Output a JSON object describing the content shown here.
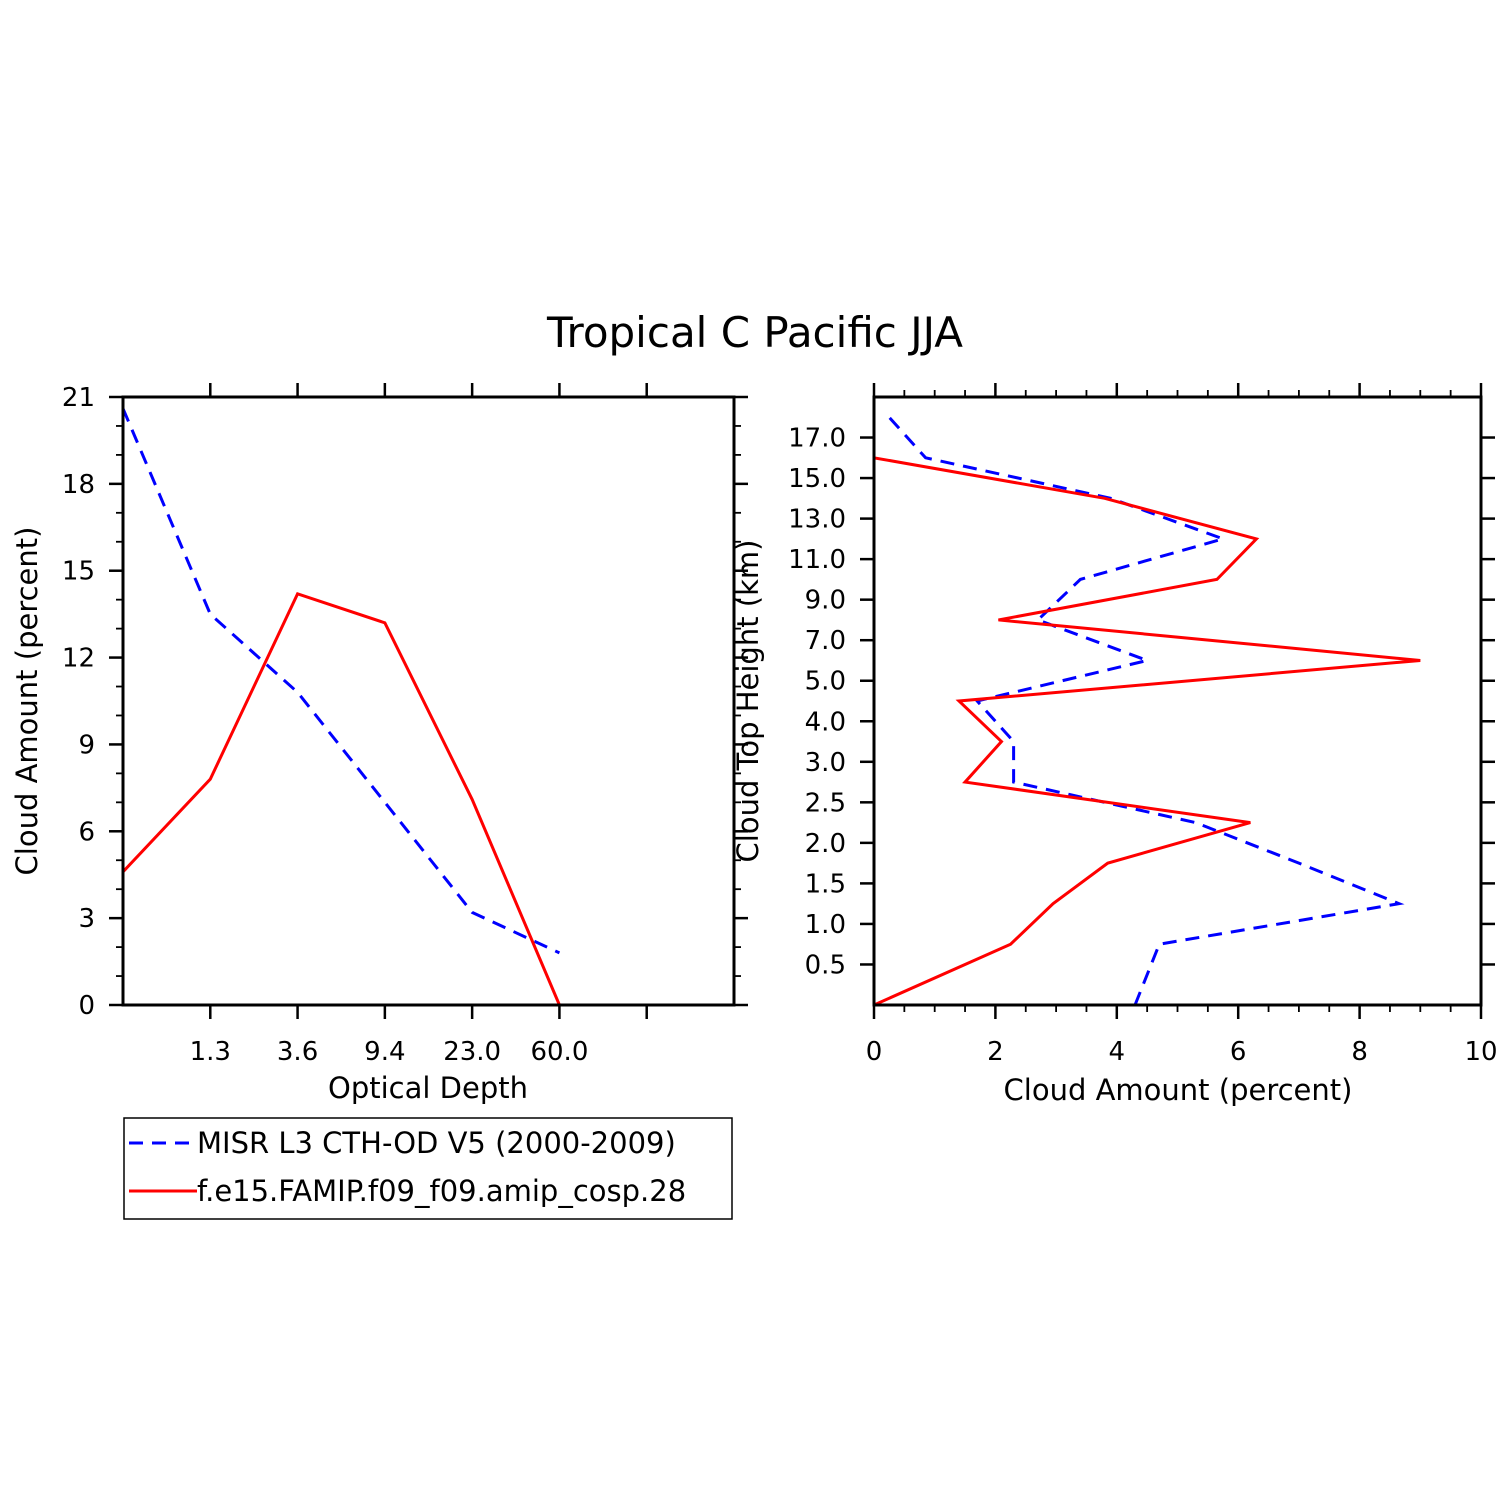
{
  "title": "Tropical C Pacific JJA",
  "colors": {
    "misr": "#0000ff",
    "model": "#ff0000"
  },
  "legend": {
    "items": [
      {
        "label": "MISR L3 CTH-OD V5 (2000-2009)",
        "color": "#0000ff",
        "dash": "dashed"
      },
      {
        "label": "f.e15.FAMIP.f09_f09.amip_cosp.28",
        "color": "#ff0000",
        "dash": "solid"
      }
    ]
  },
  "chart_data": [
    {
      "type": "line",
      "xlabel": "Optical Depth",
      "ylabel": "Cloud Amount (percent)",
      "x_ticklabels": [
        "1.3",
        "3.6",
        "9.4",
        "23.0",
        "60.0"
      ],
      "y_ticks": [
        0,
        3,
        6,
        9,
        12,
        15,
        18,
        21
      ],
      "ylim": [
        0,
        21
      ],
      "x_bins": 7,
      "series": [
        {
          "name": "MISR L3 CTH-OD V5 (2000-2009)",
          "values": [
            20.6,
            13.5,
            10.8,
            7.0,
            3.2,
            1.8
          ],
          "bin_centers": [
            0,
            1,
            2,
            3,
            4,
            5
          ]
        },
        {
          "name": "f.e15.FAMIP.f09_f09.amip_cosp.28",
          "values": [
            4.6,
            7.8,
            14.2,
            13.2,
            7.1,
            0.0
          ],
          "bin_centers": [
            0,
            1,
            2,
            3,
            4,
            5
          ]
        }
      ],
      "grid": false
    },
    {
      "type": "line",
      "xlabel": "Cloud Amount (percent)",
      "ylabel": "Cloud Top Height (km)",
      "x_ticks": [
        0,
        2,
        4,
        6,
        8,
        10
      ],
      "xlim": [
        0,
        10
      ],
      "y_ticklabels": [
        "0.5",
        "1.0",
        "1.5",
        "2.0",
        "2.5",
        "3.0",
        "4.0",
        "5.0",
        "7.0",
        "9.0",
        "11.0",
        "13.0",
        "15.0",
        "17.0"
      ],
      "series": [
        {
          "name": "MISR L3 CTH-OD V5 (2000-2009)",
          "heights": [
            0.0,
            0.75,
            1.25,
            1.75,
            2.25,
            2.75,
            3.5,
            4.5,
            6.0,
            8.0,
            10.0,
            12.0,
            14.0,
            16.0,
            18.0
          ],
          "values": [
            4.3,
            4.7,
            8.65,
            7.0,
            5.3,
            2.3,
            2.3,
            1.7,
            4.5,
            2.7,
            3.4,
            5.75,
            3.9,
            0.85,
            0.25
          ]
        },
        {
          "name": "f.e15.FAMIP.f09_f09.amip_cosp.28",
          "heights": [
            0.0,
            0.75,
            1.25,
            1.75,
            2.25,
            2.75,
            3.5,
            4.5,
            6.0,
            8.0,
            10.0,
            12.0,
            14.0,
            16.0,
            18.0
          ],
          "values": [
            0.0,
            2.25,
            2.95,
            3.85,
            6.2,
            1.5,
            2.1,
            1.4,
            9.0,
            2.05,
            5.65,
            6.3,
            3.8,
            0.0,
            0.0
          ]
        }
      ],
      "grid": false
    }
  ]
}
